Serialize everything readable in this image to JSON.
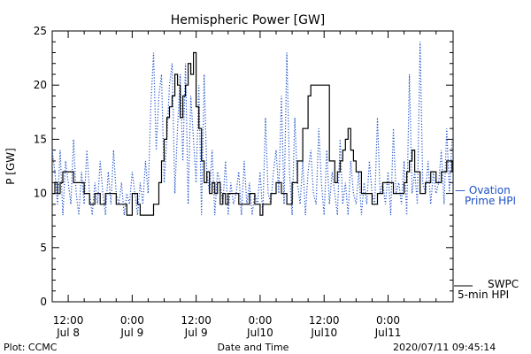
{
  "chart_data": {
    "type": "line",
    "title": "Hemispheric Power [GW]",
    "ylabel": "P [GW]",
    "xlabel": "Date and Time",
    "ylim": [
      0,
      25
    ],
    "y_ticks": [
      0,
      5,
      10,
      15,
      20,
      25
    ],
    "x_unit": "hours since 2020/07/08 00:00 UT",
    "xlim": [
      9.0,
      84.2
    ],
    "x_ticks": [
      {
        "x": 12,
        "label": [
          "12:00",
          "Jul 8"
        ]
      },
      {
        "x": 24,
        "label": [
          "0:00",
          "Jul 9"
        ]
      },
      {
        "x": 36,
        "label": [
          "12:00",
          "Jul 9"
        ]
      },
      {
        "x": 48,
        "label": [
          "0:00",
          "Jul10"
        ]
      },
      {
        "x": 60,
        "label": [
          "12:00",
          "Jul10"
        ]
      },
      {
        "x": 72,
        "label": [
          "0:00",
          "Jul11"
        ]
      }
    ],
    "grid": false,
    "legend_position": "right",
    "series": [
      {
        "name": "SWPC 5-min HPI",
        "style": "solid",
        "color": "#000000",
        "x": [
          9.0,
          9.5,
          10.0,
          10.5,
          11.0,
          12.0,
          13.0,
          14.0,
          15.0,
          16.0,
          17.0,
          18.0,
          19.0,
          20.0,
          21.0,
          22.0,
          23.0,
          24.0,
          25.0,
          25.5,
          26.0,
          26.5,
          27.0,
          28.0,
          29.0,
          29.5,
          30.0,
          30.5,
          31.0,
          31.5,
          32.0,
          32.5,
          33.0,
          33.5,
          34.0,
          34.5,
          35.0,
          35.5,
          36.0,
          36.5,
          37.0,
          37.5,
          38.0,
          38.5,
          39.0,
          39.5,
          40.0,
          40.5,
          41.0,
          41.5,
          42.0,
          43.0,
          44.0,
          45.0,
          46.0,
          47.0,
          48.0,
          48.5,
          49.0,
          50.0,
          51.0,
          52.0,
          53.0,
          54.0,
          55.0,
          56.0,
          57.0,
          57.5,
          58.0,
          59.0,
          60.0,
          61.0,
          62.0,
          62.5,
          63.0,
          63.5,
          64.0,
          64.5,
          65.0,
          65.5,
          66.0,
          67.0,
          68.0,
          69.0,
          70.0,
          71.0,
          72.0,
          73.0,
          74.0,
          75.0,
          75.5,
          76.0,
          76.5,
          77.0,
          78.0,
          79.0,
          80.0,
          81.0,
          82.0,
          82.5,
          83.0,
          84.0
        ],
        "y": [
          10,
          11,
          10,
          11,
          12,
          12,
          11,
          11,
          10,
          9,
          10,
          9,
          10,
          10,
          9,
          9,
          8,
          10,
          9,
          8,
          8,
          8,
          8,
          9,
          11,
          13,
          15,
          17,
          18,
          19,
          21,
          20,
          17,
          19,
          20,
          22,
          21,
          23,
          18,
          16,
          13,
          11,
          12,
          10,
          11,
          10,
          11,
          9,
          10,
          9,
          10,
          10,
          9,
          9,
          10,
          9,
          8,
          9,
          9,
          10,
          11,
          10,
          9,
          11,
          13,
          16,
          19,
          20,
          20,
          20,
          20,
          13,
          11,
          12,
          13,
          14,
          15,
          16,
          14,
          13,
          12,
          10,
          10,
          9,
          10,
          11,
          11,
          10,
          10,
          11,
          12,
          13,
          14,
          12,
          10,
          11,
          12,
          11,
          12,
          12,
          13,
          12
        ]
      },
      {
        "name": "Ovation Prime HPI",
        "style": "dotted",
        "color": "#1e50c8",
        "x": [
          9.0,
          9.5,
          10.0,
          10.5,
          11.0,
          11.5,
          12.0,
          12.5,
          13.0,
          13.5,
          14.0,
          14.5,
          15.0,
          15.5,
          16.0,
          16.5,
          17.0,
          17.5,
          18.0,
          18.5,
          19.0,
          19.5,
          20.0,
          20.5,
          21.0,
          21.5,
          22.0,
          22.5,
          23.0,
          23.5,
          24.0,
          24.5,
          25.0,
          25.5,
          26.0,
          26.5,
          27.0,
          27.5,
          28.0,
          28.5,
          29.0,
          29.5,
          30.0,
          30.5,
          31.0,
          31.5,
          32.0,
          32.5,
          33.0,
          33.5,
          34.0,
          34.5,
          35.0,
          35.5,
          36.0,
          36.5,
          37.0,
          37.5,
          38.0,
          38.5,
          39.0,
          39.5,
          40.0,
          40.5,
          41.0,
          41.5,
          42.0,
          42.5,
          43.0,
          43.5,
          44.0,
          44.5,
          45.0,
          45.5,
          46.0,
          46.5,
          47.0,
          47.5,
          48.0,
          48.5,
          49.0,
          49.5,
          50.0,
          50.5,
          51.0,
          51.5,
          52.0,
          52.5,
          53.0,
          53.5,
          54.0,
          54.5,
          55.0,
          55.5,
          56.0,
          56.5,
          57.0,
          57.5,
          58.0,
          58.5,
          59.0,
          59.5,
          60.0,
          60.5,
          61.0,
          61.5,
          62.0,
          62.5,
          63.0,
          63.5,
          64.0,
          64.5,
          65.0,
          65.5,
          66.0,
          66.5,
          67.0,
          67.5,
          68.0,
          68.5,
          69.0,
          69.5,
          70.0,
          70.5,
          71.0,
          71.5,
          72.0,
          72.5,
          73.0,
          73.5,
          74.0,
          74.5,
          75.0,
          75.5,
          76.0,
          76.5,
          77.0,
          77.5,
          78.0,
          78.5,
          79.0,
          79.5,
          80.0,
          80.5,
          81.0,
          81.5,
          82.0,
          82.5,
          83.0,
          83.5,
          84.0
        ],
        "y": [
          14,
          12,
          9,
          14,
          8,
          13,
          11,
          9,
          15,
          10,
          8,
          12,
          9,
          14,
          10,
          8,
          11,
          9,
          13,
          10,
          8,
          12,
          9,
          14,
          10,
          9,
          11,
          8,
          10,
          9,
          12,
          10,
          8,
          11,
          9,
          13,
          10,
          18,
          23,
          14,
          19,
          21,
          11,
          15,
          20,
          22,
          10,
          16,
          21,
          13,
          22,
          9,
          19,
          15,
          11,
          20,
          8,
          21,
          12,
          10,
          14,
          8,
          12,
          11,
          9,
          13,
          8,
          11,
          9,
          10,
          12,
          8,
          13,
          9,
          11,
          8,
          10,
          9,
          12,
          8,
          17,
          10,
          9,
          12,
          14,
          10,
          19,
          9,
          23,
          12,
          8,
          17,
          11,
          9,
          13,
          8,
          12,
          14,
          10,
          9,
          16,
          11,
          8,
          14,
          9,
          12,
          10,
          8,
          15,
          9,
          11,
          8,
          13,
          10,
          9,
          12,
          8,
          11,
          9,
          13,
          10,
          9,
          17,
          10,
          11,
          9,
          12,
          8,
          16,
          10,
          11,
          9,
          13,
          8,
          21,
          10,
          12,
          9,
          24,
          11,
          10,
          13,
          9,
          12,
          10,
          11,
          14,
          9,
          16,
          10,
          15
        ]
      }
    ]
  },
  "legend": {
    "swpc_line1": "SWPC",
    "swpc_line2": "5-min HPI",
    "ovation_line1": "— Ovation",
    "ovation_line2": "Prime HPI"
  },
  "footer": {
    "left": "Plot: CCMC",
    "center": "Date and Time",
    "right": "2020/07/11 09:45:14"
  }
}
